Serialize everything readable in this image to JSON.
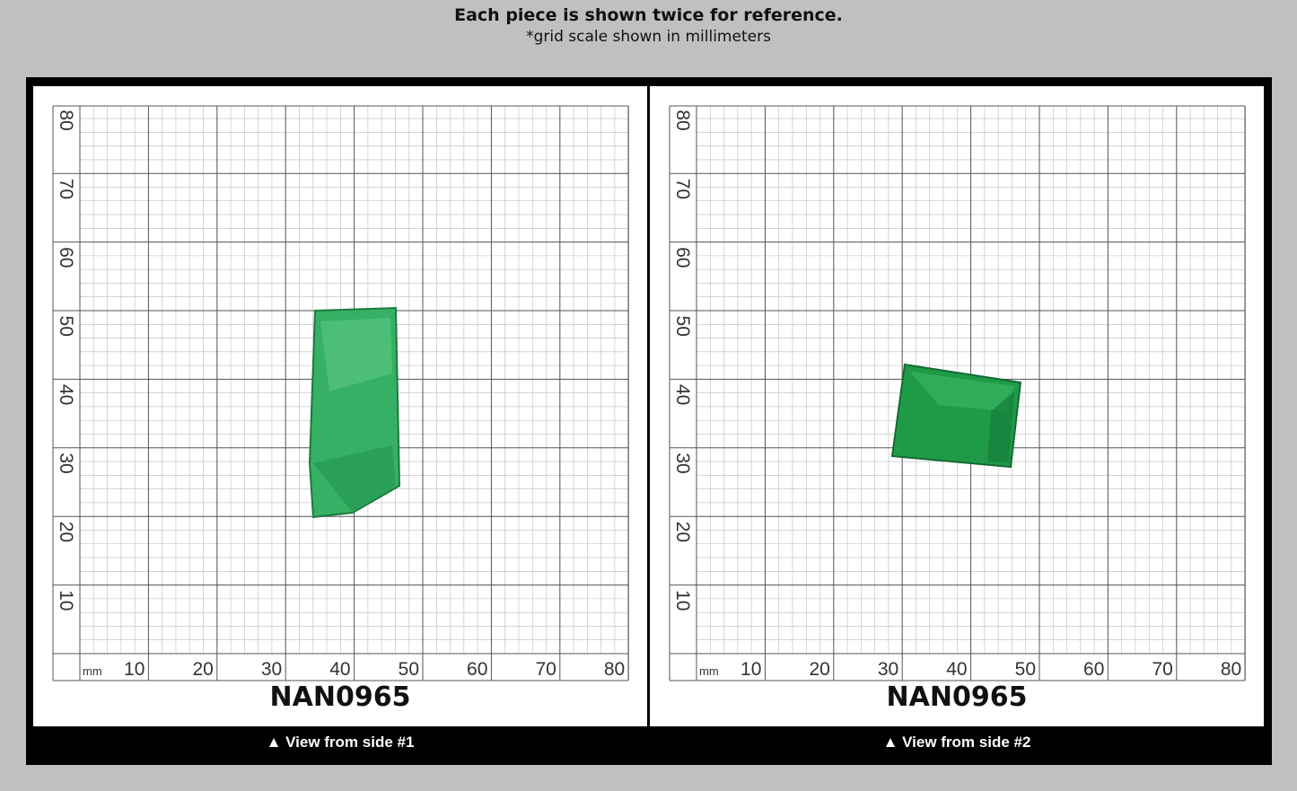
{
  "header": {
    "title": "Each piece is shown twice for reference.",
    "subtitle": "*grid scale shown in millimeters"
  },
  "grid": {
    "unit_label": "mm",
    "x_ticks": [
      "10",
      "20",
      "30",
      "40",
      "50",
      "60",
      "70",
      "80"
    ],
    "y_ticks": [
      "80",
      "70",
      "60",
      "50",
      "40",
      "30",
      "20",
      "10"
    ]
  },
  "panels": [
    {
      "code": "NAN0965",
      "caption": "▲ View from side #1"
    },
    {
      "code": "NAN0965",
      "caption": "▲ View from side #2"
    }
  ],
  "colors": {
    "background": "#c0c0c0",
    "frame": "#000000",
    "grid_major": "#555555",
    "grid_minor": "#bbbbbb",
    "gem": "#2fa75a"
  }
}
